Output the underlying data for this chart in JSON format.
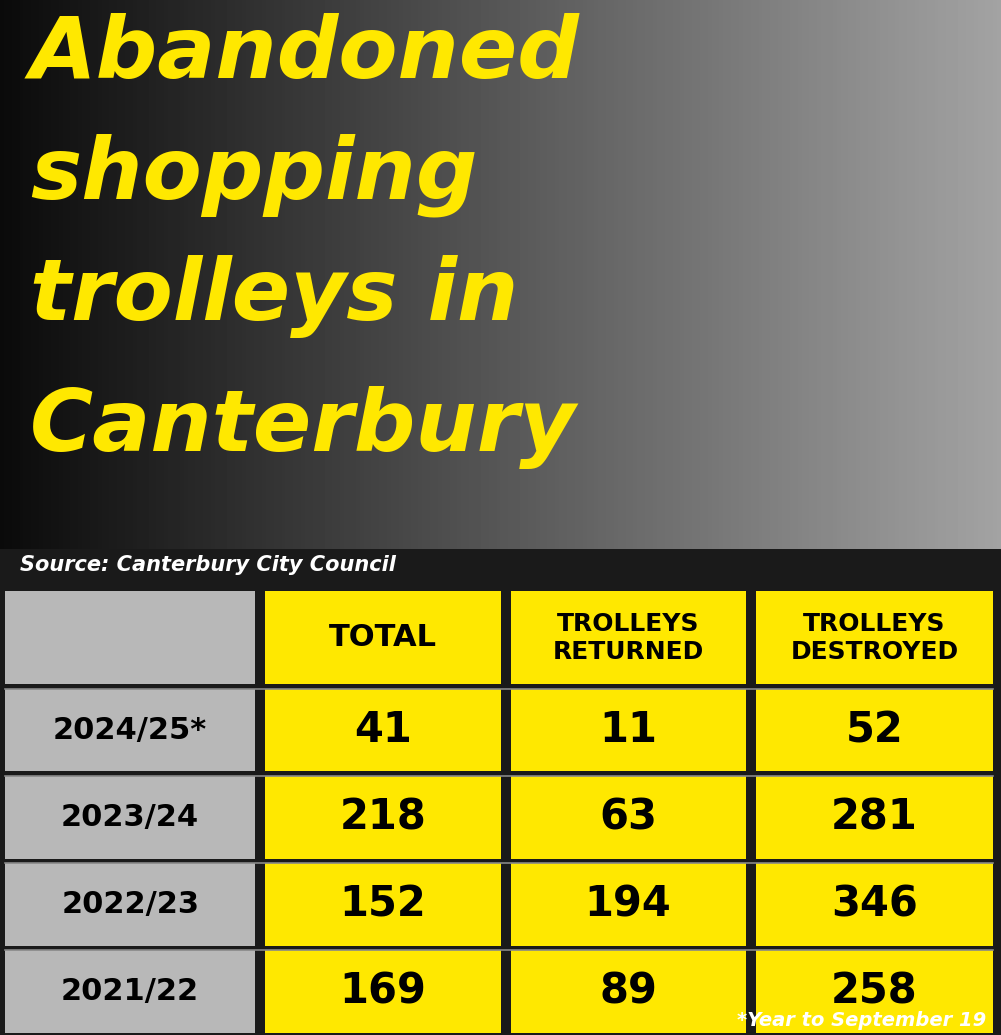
{
  "title_lines": [
    "Abandoned",
    "shopping",
    "trolleys in",
    "Canterbury"
  ],
  "title_color": "#FFE800",
  "source_text": "Source: Canterbury City Council",
  "source_color": "#FFFFFF",
  "footnote": "*Year to September 19",
  "footnote_color": "#FFFFFF",
  "header_row": [
    "TOTAL",
    "TROLLEYS\nRETURNED",
    "TROLLEYS\nDESTROYED"
  ],
  "years": [
    "2024/25*",
    "2023/24",
    "2022/23",
    "2021/22"
  ],
  "data": [
    [
      41,
      11,
      52
    ],
    [
      218,
      63,
      281
    ],
    [
      152,
      194,
      346
    ],
    [
      169,
      89,
      258
    ]
  ],
  "yellow": "#FFE800",
  "grey": "#b8b8b8",
  "black": "#000000",
  "white": "#FFFFFF",
  "bg_color": "#1a1a1a"
}
